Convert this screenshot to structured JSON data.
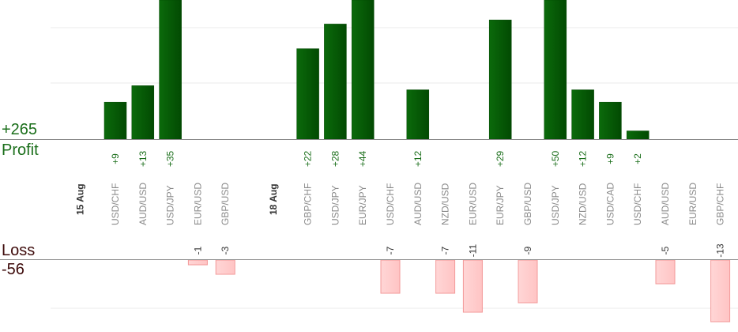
{
  "summary": {
    "profit_total": "+265",
    "profit_label": "Profit",
    "loss_label": "Loss",
    "loss_total": "-56"
  },
  "colors": {
    "profit": "#0b6a0b",
    "profit_dark": "#024a02",
    "loss": "#ffc4c4",
    "loss_border": "#f39a9a",
    "profit_text": "#1a6e1a",
    "loss_text": "#3d0a0a",
    "gridline": "#ebebeb",
    "axis": "#888888"
  },
  "chart_data": {
    "type": "bar",
    "groups": [
      {
        "date": "15 Aug",
        "items": [
          {
            "pair": "USD/CHF",
            "value": 9,
            "label": "+9"
          },
          {
            "pair": "AUD/USD",
            "value": 13,
            "label": "+13"
          },
          {
            "pair": "USD/JPY",
            "value": 35,
            "label": "+35"
          },
          {
            "pair": "EUR/USD",
            "value": -1,
            "label": "-1"
          },
          {
            "pair": "GBP/USD",
            "value": -3,
            "label": "-3"
          }
        ]
      },
      {
        "date": "18 Aug",
        "items": [
          {
            "pair": "GBP/CHF",
            "value": 22,
            "label": "+22"
          },
          {
            "pair": "USD/JPY",
            "value": 28,
            "label": "+28"
          },
          {
            "pair": "EUR/JPY",
            "value": 44,
            "label": "+44"
          },
          {
            "pair": "USD/CHF",
            "value": -7,
            "label": "-7"
          },
          {
            "pair": "AUD/USD",
            "value": 12,
            "label": "+12"
          },
          {
            "pair": "NZD/USD",
            "value": -7,
            "label": "-7"
          },
          {
            "pair": "EUR/USD",
            "value": -11,
            "label": "-11"
          },
          {
            "pair": "EUR/JPY",
            "value": 29,
            "label": "+29"
          },
          {
            "pair": "GBP/USD",
            "value": -9,
            "label": "-9"
          },
          {
            "pair": "USD/JPY",
            "value": 50,
            "label": "+50"
          },
          {
            "pair": "NZD/USD",
            "value": 12,
            "label": "+12"
          },
          {
            "pair": "USD/CAD",
            "value": 9,
            "label": "+9"
          },
          {
            "pair": "USD/CHF",
            "value": 2,
            "label": "+2"
          },
          {
            "pair": "AUD/USD",
            "value": -5,
            "label": "-5"
          },
          {
            "pair": "EUR/USD",
            "value": null,
            "label": ""
          },
          {
            "pair": "GBP/CHF",
            "value": -13,
            "label": "-13"
          }
        ]
      }
    ]
  }
}
